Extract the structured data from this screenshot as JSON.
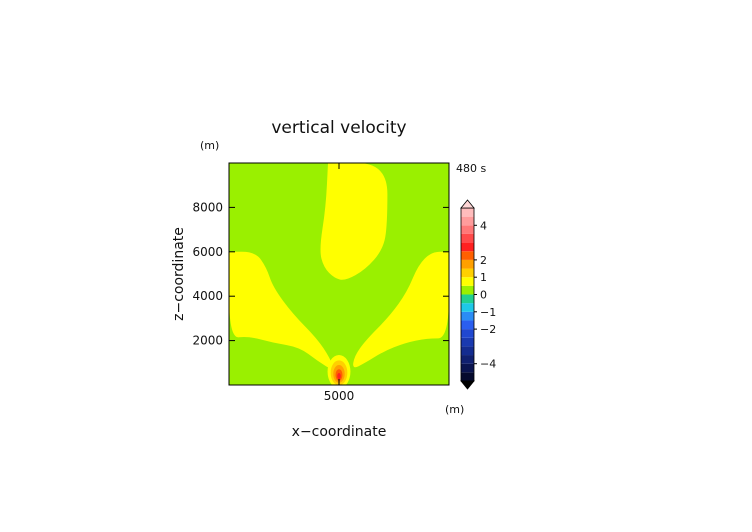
{
  "chart_data": {
    "type": "heatmap",
    "title": "vertical velocity",
    "xlabel": "x−coordinate",
    "ylabel": "z−coordinate",
    "x_unit": "(m)",
    "y_unit": "(m)",
    "time_label": "480 s",
    "xlim": [
      0,
      10000
    ],
    "ylim": [
      0,
      10000
    ],
    "x_ticks": [
      {
        "value": 5000,
        "label": "5000"
      }
    ],
    "y_ticks": [
      {
        "value": 2000,
        "label": "2000"
      },
      {
        "value": 4000,
        "label": "4000"
      },
      {
        "value": 6000,
        "label": "6000"
      },
      {
        "value": 8000,
        "label": "8000"
      }
    ],
    "colorbar": {
      "range": [
        -5,
        5
      ],
      "tick_labels": [
        {
          "value": 4,
          "label": "4"
        },
        {
          "value": 2,
          "label": "2"
        },
        {
          "value": 1,
          "label": "1"
        },
        {
          "value": 0,
          "label": "0"
        },
        {
          "value": -1,
          "label": "−1"
        },
        {
          "value": -2,
          "label": "−2"
        },
        {
          "value": -4,
          "label": "−4"
        }
      ],
      "levels": [
        {
          "from": -5.0,
          "to": -4.5,
          "color": "#050a2e"
        },
        {
          "from": -4.5,
          "to": -4.0,
          "color": "#0a1450"
        },
        {
          "from": -4.0,
          "to": -3.5,
          "color": "#102070"
        },
        {
          "from": -3.5,
          "to": -3.0,
          "color": "#142c90"
        },
        {
          "from": -3.0,
          "to": -2.5,
          "color": "#1a3ab0"
        },
        {
          "from": -2.5,
          "to": -2.0,
          "color": "#2048d0"
        },
        {
          "from": -2.0,
          "to": -1.5,
          "color": "#2a5ef0"
        },
        {
          "from": -1.5,
          "to": -1.0,
          "color": "#2a8cf5"
        },
        {
          "from": -1.0,
          "to": -0.5,
          "color": "#1ec8e8"
        },
        {
          "from": -0.5,
          "to": 0.0,
          "color": "#20d090"
        },
        {
          "from": 0.0,
          "to": 0.5,
          "color": "#9af000"
        },
        {
          "from": 0.5,
          "to": 1.0,
          "color": "#ffff00"
        },
        {
          "from": 1.0,
          "to": 1.5,
          "color": "#ffd000"
        },
        {
          "from": 1.5,
          "to": 2.0,
          "color": "#ffa000"
        },
        {
          "from": 2.0,
          "to": 2.5,
          "color": "#ff6000"
        },
        {
          "from": 2.5,
          "to": 3.0,
          "color": "#ff2020"
        },
        {
          "from": 3.0,
          "to": 3.5,
          "color": "#ff4a4a"
        },
        {
          "from": 3.5,
          "to": 4.0,
          "color": "#ff7878"
        },
        {
          "from": 4.0,
          "to": 4.5,
          "color": "#ff9c9c"
        },
        {
          "from": 4.5,
          "to": 5.0,
          "color": "#ffbcbc"
        }
      ]
    },
    "background_value_range": [
      0,
      0.5
    ],
    "regions": [
      {
        "name": "upper-updraft",
        "value_range": [
          0.5,
          1.0
        ],
        "outline": [
          [
            4500,
            10000
          ],
          [
            7200,
            10000
          ],
          [
            7200,
            7200
          ],
          [
            7000,
            6100
          ],
          [
            6200,
            5200
          ],
          [
            5300,
            4700
          ],
          [
            4800,
            4800
          ],
          [
            4300,
            5300
          ],
          [
            4100,
            6100
          ],
          [
            4400,
            8000
          ],
          [
            4500,
            10000
          ]
        ]
      },
      {
        "name": "left-arm",
        "value_range": [
          0.5,
          1.0
        ],
        "outline": [
          [
            0,
            6000
          ],
          [
            1200,
            6000
          ],
          [
            1700,
            5300
          ],
          [
            2000,
            4400
          ],
          [
            2900,
            3200
          ],
          [
            4000,
            2100
          ],
          [
            4600,
            1200
          ],
          [
            4800,
            600
          ],
          [
            4000,
            1100
          ],
          [
            3200,
            1700
          ],
          [
            2000,
            1900
          ],
          [
            900,
            2200
          ],
          [
            0,
            2100
          ],
          [
            0,
            6000
          ]
        ]
      },
      {
        "name": "right-arm",
        "value_range": [
          0.5,
          1.0
        ],
        "outline": [
          [
            10000,
            6000
          ],
          [
            9200,
            6000
          ],
          [
            8600,
            5400
          ],
          [
            8100,
            4200
          ],
          [
            7300,
            3100
          ],
          [
            6200,
            2000
          ],
          [
            5700,
            1300
          ],
          [
            5600,
            700
          ],
          [
            6200,
            1000
          ],
          [
            7000,
            1500
          ],
          [
            8000,
            1900
          ],
          [
            9000,
            2100
          ],
          [
            10000,
            2100
          ],
          [
            10000,
            6000
          ]
        ]
      }
    ],
    "source_contours": [
      {
        "x": 5000,
        "z": 600,
        "value": 0.5,
        "rx": 520,
        "rz": 750
      },
      {
        "x": 5000,
        "z": 550,
        "value": 1.0,
        "rx": 380,
        "rz": 560
      },
      {
        "x": 5000,
        "z": 500,
        "value": 1.5,
        "rx": 260,
        "rz": 400
      },
      {
        "x": 5000,
        "z": 450,
        "value": 2.0,
        "rx": 160,
        "rz": 260
      },
      {
        "x": 5000,
        "z": 400,
        "value": 2.5,
        "rx": 80,
        "rz": 140
      }
    ],
    "grid": false,
    "legend": "right"
  }
}
